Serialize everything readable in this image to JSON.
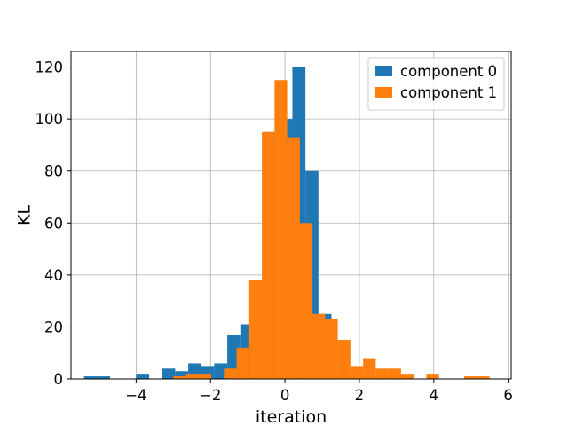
{
  "chart_data": {
    "type": "histogram",
    "title": "",
    "xlabel": "iteration",
    "ylabel": "KL",
    "xlim": [
      -5.75,
      6.08
    ],
    "ylim": [
      0,
      126
    ],
    "grid": true,
    "legend_placement": "top-right",
    "x_ticks": [
      -4,
      -2,
      0,
      2,
      4,
      6
    ],
    "x_tick_labels": [
      "−4",
      "−2",
      "0",
      "2",
      "4",
      "6"
    ],
    "y_ticks": [
      0,
      20,
      40,
      60,
      80,
      100,
      120
    ],
    "y_tick_labels": [
      "0",
      "20",
      "40",
      "60",
      "80",
      "100",
      "120"
    ],
    "series": [
      {
        "name": "component 0",
        "color": "#1f77b4",
        "bin_edges": [
          -5.4,
          -5.05,
          -4.7,
          -4.35,
          -4.0,
          -3.65,
          -3.3,
          -2.95,
          -2.6,
          -2.25,
          -1.9,
          -1.55,
          -1.2,
          -0.85,
          -0.5,
          -0.15,
          0.2,
          0.55,
          0.9,
          1.25
        ],
        "counts": [
          1,
          1,
          0,
          0,
          2,
          0,
          4,
          3,
          6,
          5,
          6,
          17,
          21,
          36,
          95,
          100,
          120,
          80,
          25
        ]
      },
      {
        "name": "component 1",
        "color": "#ff7f0e",
        "bin_edges": [
          -3.0,
          -2.66,
          -2.32,
          -1.98,
          -1.64,
          -1.3,
          -0.96,
          -0.62,
          -0.28,
          0.06,
          0.4,
          0.74,
          1.08,
          1.42,
          1.76,
          2.1,
          2.44,
          2.78,
          3.12,
          3.46,
          3.8,
          4.14,
          4.48,
          4.82,
          5.16,
          5.5
        ],
        "counts": [
          1,
          2,
          2,
          0,
          4,
          12,
          38,
          95,
          115,
          93,
          60,
          25,
          23,
          15,
          5,
          8,
          4,
          4,
          2,
          0,
          2,
          0,
          0,
          1,
          1
        ]
      }
    ]
  }
}
